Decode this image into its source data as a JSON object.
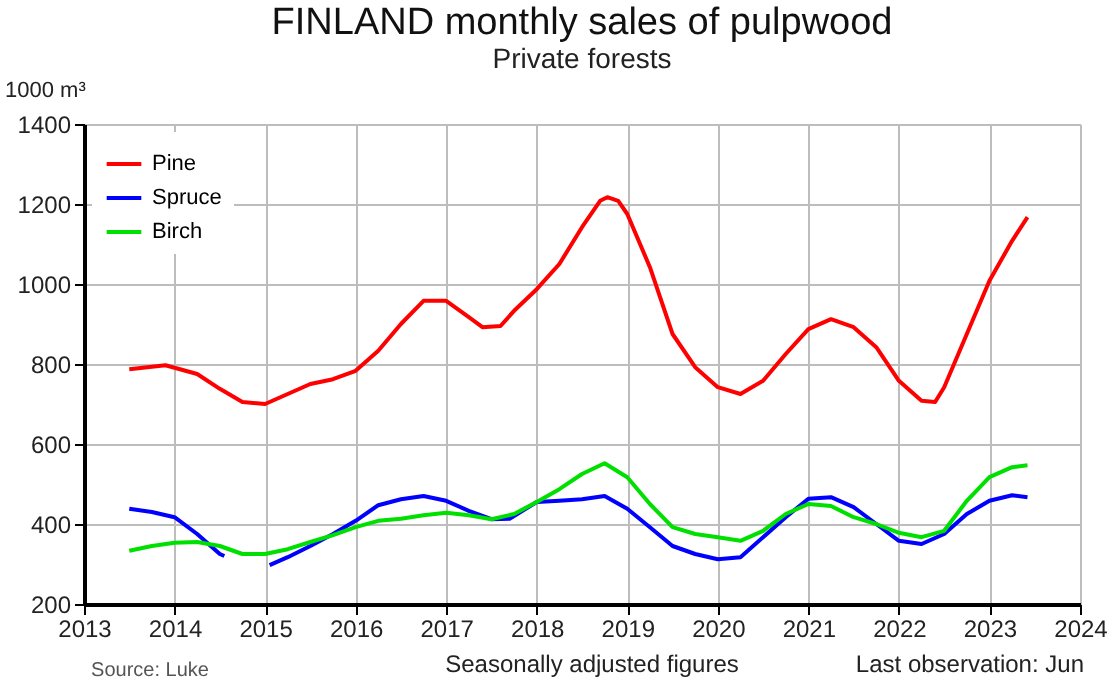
{
  "chart_data": {
    "type": "line",
    "title": "FINLAND monthly sales of pulpwood",
    "subtitle": "Private forests",
    "ylabel": "1000 m³",
    "annotations": [
      "Source: Luke",
      "Seasonally adjusted figures",
      "Last observation: Jun"
    ],
    "xlim": [
      2013,
      2024
    ],
    "xticks": [
      2013,
      2014,
      2015,
      2016,
      2017,
      2018,
      2019,
      2020,
      2021,
      2022,
      2023,
      2024
    ],
    "ylim": [
      200,
      1400
    ],
    "yticks": [
      200,
      400,
      600,
      800,
      1000,
      1200,
      1400
    ],
    "grid": true,
    "legend": "top left",
    "series": [
      {
        "name": "Pine",
        "color": "#ff0000",
        "x": [
          2013.5,
          2013.9,
          2014.25,
          2014.5,
          2014.75,
          2015,
          2015.25,
          2015.5,
          2015.75,
          2016,
          2016.25,
          2016.5,
          2016.75,
          2017,
          2017.25,
          2017.4,
          2017.6,
          2017.75,
          2018,
          2018.25,
          2018.5,
          2018.7,
          2018.78,
          2018.9,
          2019,
          2019.25,
          2019.5,
          2019.75,
          2020,
          2020.25,
          2020.5,
          2020.75,
          2021,
          2021.25,
          2021.5,
          2021.75,
          2022,
          2022.25,
          2022.4,
          2022.5,
          2022.75,
          2023,
          2023.25,
          2023.42
        ],
        "values": [
          787,
          797,
          775,
          738,
          705,
          700,
          725,
          750,
          762,
          783,
          833,
          900,
          958,
          958,
          917,
          892,
          895,
          933,
          987,
          1050,
          1142,
          1208,
          1217,
          1208,
          1175,
          1042,
          875,
          792,
          742,
          725,
          758,
          825,
          887,
          912,
          892,
          842,
          758,
          708,
          705,
          742,
          875,
          1008,
          1108,
          1167
        ]
      },
      {
        "name": "Spruce",
        "color": "#0000ff",
        "x": [
          2013.5,
          2013.75,
          2014,
          2014.25,
          2014.5,
          2014.55,
          2014.8,
          2015.05,
          2015.25,
          2015.5,
          2015.75,
          2016,
          2016.25,
          2016.5,
          2016.75,
          2017,
          2017.25,
          2017.5,
          2017.7,
          2018,
          2018.25,
          2018.5,
          2018.75,
          2019,
          2019.25,
          2019.5,
          2019.75,
          2020,
          2020.25,
          2020.5,
          2020.75,
          2021,
          2021.25,
          2021.5,
          2021.75,
          2022,
          2022.25,
          2022.5,
          2022.75,
          2023,
          2023.25,
          2023.42
        ],
        "values": [
          438,
          430,
          417,
          375,
          325,
          320,
          null,
          297,
          317,
          345,
          375,
          408,
          447,
          462,
          470,
          458,
          433,
          412,
          413,
          455,
          458,
          462,
          470,
          438,
          392,
          345,
          325,
          312,
          317,
          367,
          417,
          463,
          467,
          442,
          400,
          358,
          350,
          375,
          425,
          458,
          472,
          467
        ]
      },
      {
        "name": "Birch",
        "color": "#00e000",
        "x": [
          2013.5,
          2013.75,
          2014,
          2014.25,
          2014.5,
          2014.75,
          2015,
          2015.25,
          2015.5,
          2015.75,
          2016,
          2016.25,
          2016.5,
          2016.75,
          2017,
          2017.25,
          2017.5,
          2017.75,
          2018,
          2018.25,
          2018.5,
          2018.75,
          2019,
          2019.25,
          2019.5,
          2019.75,
          2020,
          2020.25,
          2020.5,
          2020.75,
          2021,
          2021.25,
          2021.5,
          2021.75,
          2022,
          2022.25,
          2022.5,
          2022.75,
          2023,
          2023.25,
          2023.42
        ],
        "values": [
          333,
          345,
          353,
          355,
          345,
          325,
          325,
          337,
          355,
          372,
          392,
          408,
          413,
          422,
          428,
          422,
          412,
          425,
          455,
          487,
          525,
          552,
          517,
          450,
          392,
          375,
          367,
          358,
          383,
          425,
          450,
          445,
          417,
          400,
          378,
          367,
          383,
          458,
          517,
          542,
          547
        ]
      }
    ]
  }
}
